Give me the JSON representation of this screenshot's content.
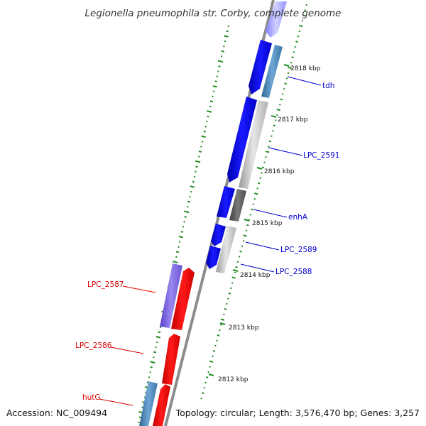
{
  "title": "Legionella pneumophila str. Corby, complete genome",
  "accession": "Accession: NC_009494",
  "topology": "Topology: circular; Length: 3,576,470 bp; Genes: 3,257",
  "ticks": [
    "2818 kbp",
    "2817 kbp",
    "2816 kbp",
    "2815 kbp",
    "2814 kbp",
    "2813 kbp",
    "2812 kbp"
  ],
  "gene_labels": [
    {
      "text": "tdh",
      "strand": "forward"
    },
    {
      "text": "LPC_2591",
      "strand": "forward"
    },
    {
      "text": "enhA",
      "strand": "forward"
    },
    {
      "text": "LPC_2589",
      "strand": "forward"
    },
    {
      "text": "LPC_2588",
      "strand": "forward"
    },
    {
      "text": "LPC_2587",
      "strand": "reverse"
    },
    {
      "text": "LPC_2586",
      "strand": "reverse"
    },
    {
      "text": "hutG",
      "strand": "reverse"
    }
  ],
  "colors": {
    "forward_label": "#0000cc",
    "reverse_label": "#dd0000",
    "forward_cds": "#0000ff",
    "reverse_cds": "#ff0000",
    "backbone": "#8c8c8c",
    "gc_dots": "#228b22"
  }
}
